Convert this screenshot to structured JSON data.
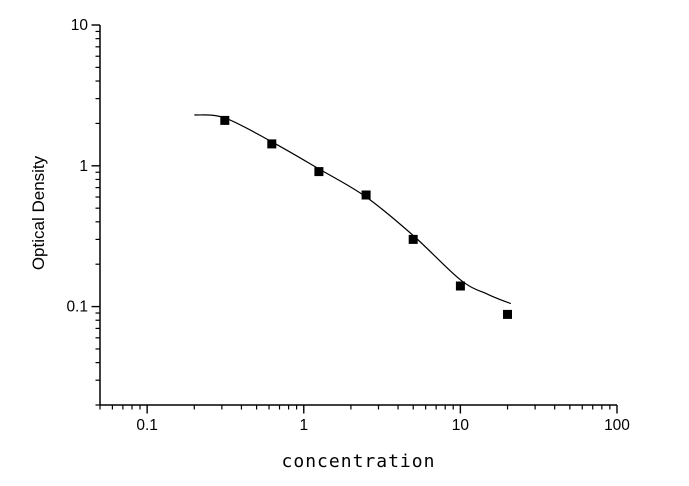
{
  "figure": {
    "background_color": "#ffffff",
    "foreground_color": "#000000"
  },
  "chart_data": {
    "type": "scatter",
    "title": "",
    "xlabel": "concentration",
    "ylabel": "Optical Density",
    "x_scale": "log",
    "y_scale": "log",
    "xlim": [
      0.05,
      100
    ],
    "ylim": [
      0.02,
      10
    ],
    "x_major_ticks": [
      0.1,
      1,
      10,
      100
    ],
    "x_major_tick_labels": [
      "0.1",
      "1",
      "10",
      "100"
    ],
    "y_major_ticks": [
      10,
      1,
      0.1
    ],
    "y_major_tick_labels": [
      "10",
      "1",
      "0.1"
    ],
    "minor_ticks": true,
    "grid": false,
    "legend": "none",
    "marker": {
      "shape": "filled-square",
      "color": "#000000"
    },
    "line_color": "#000000",
    "series": [
      {
        "name": "standard-points",
        "type": "scatter",
        "x": [
          0.313,
          0.625,
          1.25,
          2.5,
          5,
          10,
          20
        ],
        "y": [
          2.1,
          1.43,
          0.91,
          0.62,
          0.3,
          0.14,
          0.088
        ]
      },
      {
        "name": "fit-curve",
        "type": "line",
        "x": [
          0.2,
          0.313,
          0.625,
          1.25,
          2.5,
          5,
          10,
          15,
          21
        ],
        "y": [
          2.3,
          2.19,
          1.48,
          0.95,
          0.6,
          0.32,
          0.155,
          0.122,
          0.105
        ]
      }
    ]
  }
}
